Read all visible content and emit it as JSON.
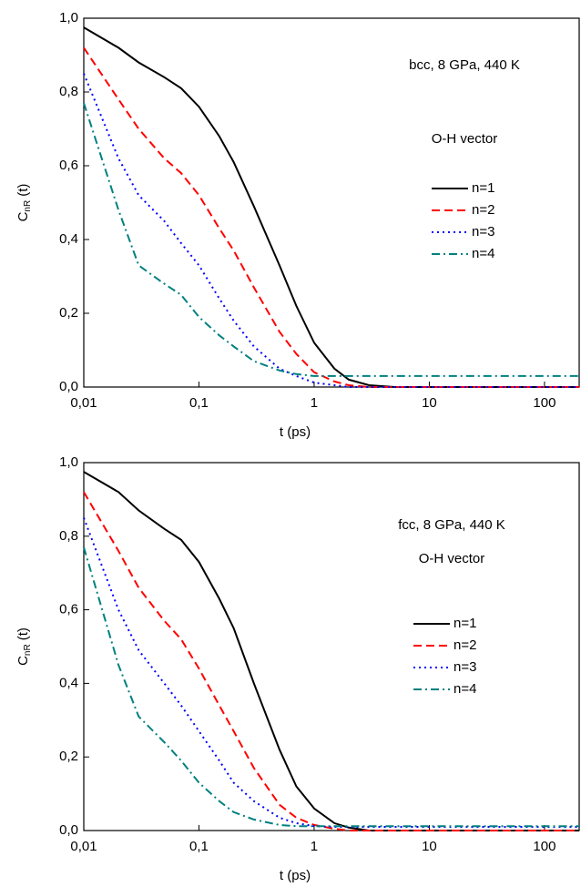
{
  "chart_data": [
    {
      "type": "line",
      "annotations": [
        "bcc, 8 GPa, 440 K",
        "O-H vector"
      ],
      "xlabel": "t (ps)",
      "ylabel": "C",
      "ylabel_sub": "nR",
      "ylabel_suffix": "(t)",
      "xscale": "log",
      "xlim": [
        0.01,
        200
      ],
      "ylim": [
        0,
        1
      ],
      "xticks": [
        {
          "value": 0.01,
          "label": "0,01"
        },
        {
          "value": 0.1,
          "label": "0,1"
        },
        1,
        10,
        100
      ],
      "yticks": [
        {
          "value": 0,
          "label": "0,0"
        },
        {
          "value": 0.2,
          "label": "0,2"
        },
        {
          "value": 0.4,
          "label": "0,4"
        },
        {
          "value": 0.6,
          "label": "0,6"
        },
        {
          "value": 0.8,
          "label": "0,8"
        },
        {
          "value": 1,
          "label": "1,0"
        }
      ],
      "x": [
        0.01,
        0.02,
        0.03,
        0.05,
        0.07,
        0.1,
        0.15,
        0.2,
        0.3,
        0.5,
        0.7,
        1,
        1.5,
        2,
        3,
        5,
        10,
        100,
        200
      ],
      "series": [
        {
          "name": "n=1",
          "color": "#000000",
          "dash": "solid",
          "values": [
            0.975,
            0.92,
            0.88,
            0.84,
            0.81,
            0.76,
            0.68,
            0.61,
            0.49,
            0.33,
            0.22,
            0.12,
            0.05,
            0.02,
            0.005,
            0,
            0,
            0,
            0
          ]
        },
        {
          "name": "n=2",
          "color": "#ff0000",
          "dash": "dashed",
          "values": [
            0.92,
            0.78,
            0.7,
            0.62,
            0.58,
            0.52,
            0.43,
            0.37,
            0.27,
            0.15,
            0.09,
            0.04,
            0.015,
            0.005,
            0,
            0,
            0,
            0,
            0
          ]
        },
        {
          "name": "n=3",
          "color": "#0000ff",
          "dash": "dotted",
          "values": [
            0.85,
            0.62,
            0.52,
            0.45,
            0.39,
            0.33,
            0.24,
            0.18,
            0.11,
            0.05,
            0.03,
            0.012,
            0.005,
            0,
            0,
            0,
            0,
            0,
            0
          ]
        },
        {
          "name": "n=4",
          "color": "#008080",
          "dash": "dashdot",
          "values": [
            0.77,
            0.48,
            0.33,
            0.28,
            0.25,
            0.19,
            0.14,
            0.11,
            0.07,
            0.045,
            0.035,
            0.03,
            0.03,
            0.03,
            0.03,
            0.03,
            0.03,
            0.03,
            0.03
          ]
        }
      ]
    },
    {
      "type": "line",
      "annotations": [
        "fcc, 8 GPa, 440 K",
        "O-H vector"
      ],
      "xlabel": "t (ps)",
      "ylabel": "C",
      "ylabel_sub": "nR",
      "ylabel_suffix": "(t)",
      "xscale": "log",
      "xlim": [
        0.01,
        200
      ],
      "ylim": [
        0,
        1
      ],
      "xticks": [
        {
          "value": 0.01,
          "label": "0,01"
        },
        {
          "value": 0.1,
          "label": "0,1"
        },
        1,
        10,
        100
      ],
      "yticks": [
        {
          "value": 0,
          "label": "0,0"
        },
        {
          "value": 0.2,
          "label": "0,2"
        },
        {
          "value": 0.4,
          "label": "0,4"
        },
        {
          "value": 0.6,
          "label": "0,6"
        },
        {
          "value": 0.8,
          "label": "0,8"
        },
        {
          "value": 1,
          "label": "1,0"
        }
      ],
      "x": [
        0.01,
        0.02,
        0.03,
        0.05,
        0.07,
        0.1,
        0.15,
        0.2,
        0.3,
        0.5,
        0.7,
        1,
        1.5,
        2,
        3,
        5,
        10,
        100,
        200
      ],
      "series": [
        {
          "name": "n=1",
          "color": "#000000",
          "dash": "solid",
          "values": [
            0.975,
            0.92,
            0.87,
            0.82,
            0.79,
            0.73,
            0.63,
            0.55,
            0.4,
            0.22,
            0.12,
            0.06,
            0.02,
            0.008,
            0,
            0,
            0,
            0,
            0
          ]
        },
        {
          "name": "n=2",
          "color": "#ff0000",
          "dash": "dashed",
          "values": [
            0.92,
            0.76,
            0.66,
            0.57,
            0.52,
            0.44,
            0.34,
            0.27,
            0.17,
            0.07,
            0.035,
            0.015,
            0.005,
            0,
            0,
            0,
            0,
            0,
            0
          ]
        },
        {
          "name": "n=3",
          "color": "#0000ff",
          "dash": "dotted",
          "values": [
            0.85,
            0.6,
            0.49,
            0.4,
            0.34,
            0.27,
            0.19,
            0.13,
            0.08,
            0.035,
            0.02,
            0.012,
            0.01,
            0.01,
            0.01,
            0.01,
            0.01,
            0.01,
            0.01
          ]
        },
        {
          "name": "n=4",
          "color": "#008080",
          "dash": "dashdot",
          "values": [
            0.77,
            0.45,
            0.31,
            0.24,
            0.19,
            0.13,
            0.08,
            0.05,
            0.03,
            0.015,
            0.012,
            0.012,
            0.012,
            0.012,
            0.012,
            0.012,
            0.012,
            0.012,
            0.012
          ]
        }
      ]
    }
  ]
}
